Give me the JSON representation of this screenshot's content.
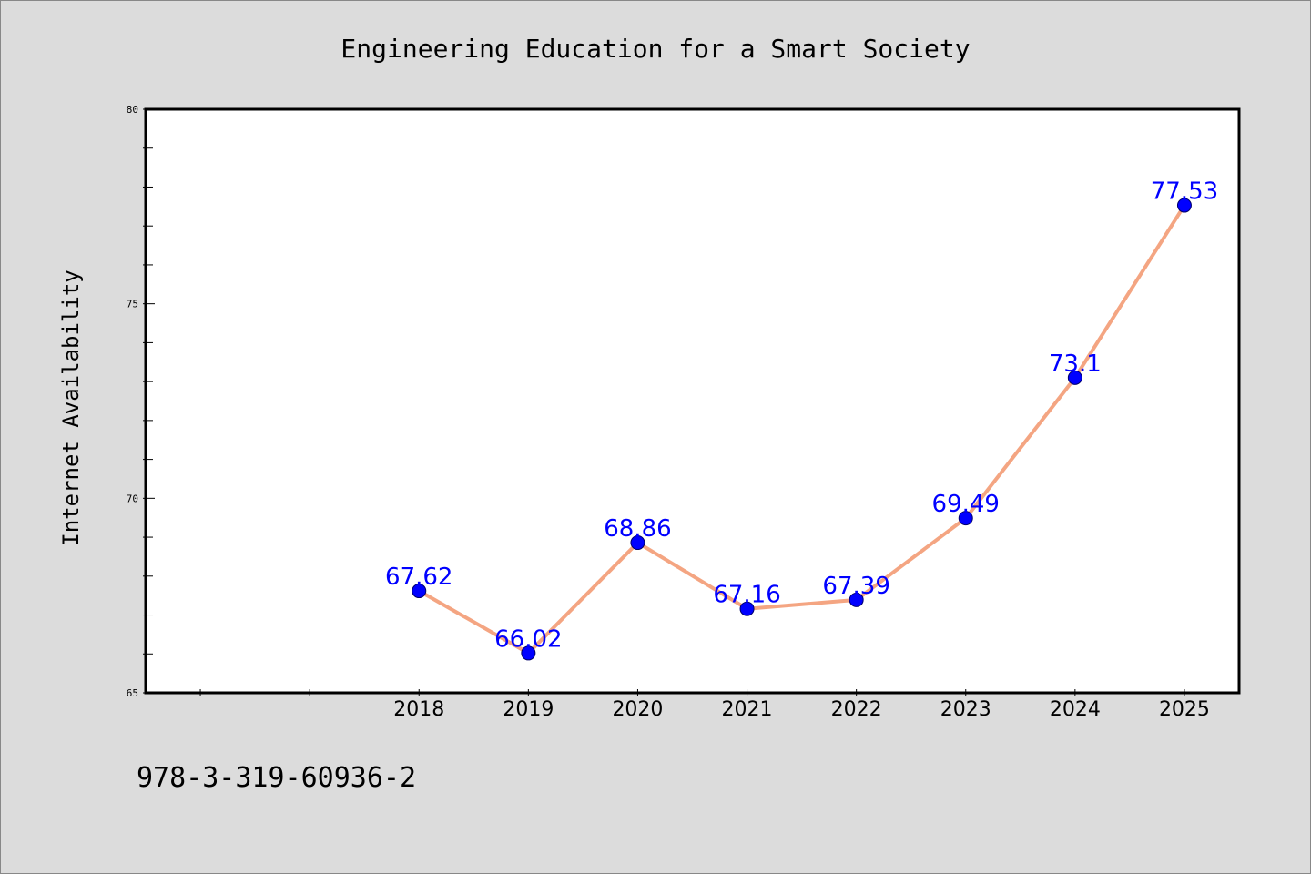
{
  "chart_data": {
    "type": "line",
    "title": "Engineering Education for a Smart Society",
    "ylabel": "Internet Availability",
    "xlabel": "",
    "caption": "978-3-319-60936-2",
    "categories": [
      "2018",
      "2019",
      "2020",
      "2021",
      "2022",
      "2023",
      "2024",
      "2025"
    ],
    "x_axis_range": [
      2015.5,
      2025.5
    ],
    "ylim": [
      65,
      80
    ],
    "y_ticks": [
      65,
      70,
      75,
      80
    ],
    "y_tick_labels": [
      "65",
      "70",
      "75",
      "80"
    ],
    "y_minor_tick_step": 1,
    "series": [
      {
        "values": [
          67.62,
          66.02,
          68.86,
          67.16,
          67.39,
          69.49,
          73.1,
          77.53
        ],
        "data_labels": [
          "67.62",
          "66.02",
          "68.86",
          "67.16",
          "67.39",
          "69.49",
          "73.1",
          "77.53"
        ]
      }
    ],
    "grid": false,
    "legend": "none",
    "colors": {
      "background": "#dcdcdc",
      "plot_background": "#ffffff",
      "line": "#f4a582",
      "marker": "#0000ff",
      "data_label": "#0000ff",
      "text": "#000000"
    }
  }
}
